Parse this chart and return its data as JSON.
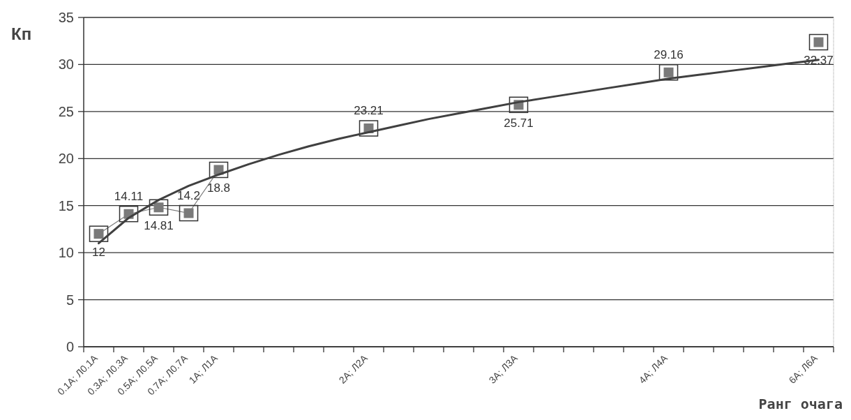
{
  "chart_data": {
    "type": "line",
    "ylabel": "Кп",
    "xlabel": "Ранг очага",
    "categories": [
      "0.1A; Л0.1A",
      "0.3A; Л0.3A",
      "0.5A; Л0.5A",
      "0.7A; Л0.7A",
      "1A; Л1A",
      null,
      null,
      null,
      null,
      "2A; Л2A",
      null,
      null,
      null,
      null,
      "3A; Л3A",
      null,
      null,
      null,
      null,
      "4A; Л4A",
      null,
      null,
      null,
      null,
      "6A; Л6A"
    ],
    "series": [
      {
        "color": "#7a7a7a",
        "marker": "square",
        "data_labels": true,
        "values": [
          12,
          14.11,
          14.81,
          14.2,
          18.8,
          null,
          null,
          null,
          null,
          23.21,
          null,
          null,
          null,
          null,
          25.71,
          null,
          null,
          null,
          null,
          29.16,
          null,
          null,
          null,
          null,
          32.37
        ]
      },
      {
        "color": "#404040",
        "marker": "none",
        "values": [
          11.0,
          13.7,
          15.6,
          17.1,
          18.3,
          19.4,
          20.4,
          21.3,
          22.1,
          22.8,
          23.5,
          24.2,
          24.8,
          25.4,
          26.0,
          26.5,
          27.0,
          27.5,
          28.0,
          28.5,
          28.9,
          29.3,
          29.7,
          30.1,
          30.5
        ]
      }
    ],
    "ylim": [
      0,
      35
    ],
    "yticks": [
      0,
      5,
      10,
      15,
      20,
      25,
      30,
      35
    ],
    "grid": "y"
  }
}
